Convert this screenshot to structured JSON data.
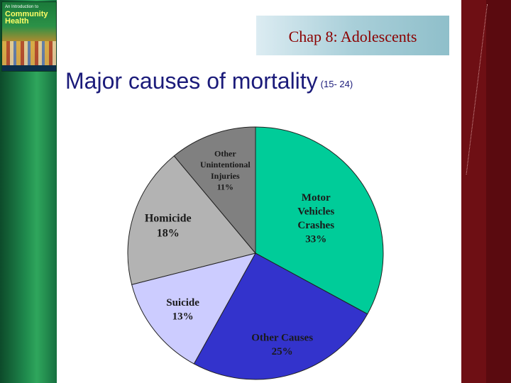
{
  "slide": {
    "chapter_title": "Chap 8: Adolescents",
    "heading": "Major causes of mortality",
    "age_range": "(15- 24)"
  },
  "book_cover": {
    "subtitle": "An Introduction to",
    "title_line1": "Community",
    "title_line2": "Health"
  },
  "colors": {
    "left_bar": "#1f8a4d",
    "right_bar": "#6e0f14",
    "title_text": "#8b0000",
    "heading_text": "#1b1b7a"
  },
  "chart_data": {
    "type": "pie",
    "start_angle_deg": 0,
    "direction": "clockwise",
    "slices": [
      {
        "label_lines": [
          "Motor",
          "Vehicles",
          "Crashes"
        ],
        "value": 33,
        "value_text": "33%",
        "color": "#00cc99"
      },
      {
        "label_lines": [
          "Other Causes"
        ],
        "value": 25,
        "value_text": "25%",
        "color": "#3333cc"
      },
      {
        "label_lines": [
          "Suicide"
        ],
        "value": 13,
        "value_text": "13%",
        "color": "#ccccff"
      },
      {
        "label_lines": [
          "Homicide"
        ],
        "value": 18,
        "value_text": "18%",
        "color": "#b3b3b3"
      },
      {
        "label_lines": [
          "Other",
          "Unintentional",
          "Injuries"
        ],
        "value": 11,
        "value_text": "11%",
        "color": "#808080"
      }
    ]
  }
}
